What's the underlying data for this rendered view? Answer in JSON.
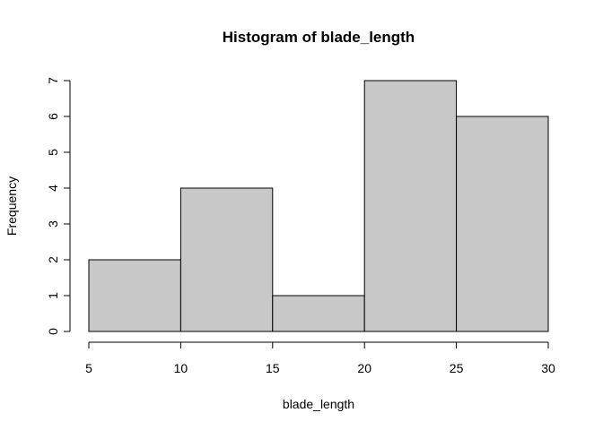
{
  "chart_data": {
    "type": "bar",
    "title": "Histogram of blade_length",
    "xlabel": "blade_length",
    "ylabel": "Frequency",
    "bins": [
      {
        "start": 5,
        "end": 10,
        "count": 2
      },
      {
        "start": 10,
        "end": 15,
        "count": 4
      },
      {
        "start": 15,
        "end": 20,
        "count": 1
      },
      {
        "start": 20,
        "end": 25,
        "count": 7
      },
      {
        "start": 25,
        "end": 30,
        "count": 6
      }
    ],
    "xlim": [
      5,
      30
    ],
    "ylim": [
      0,
      7
    ],
    "x_ticks": [
      "5",
      "10",
      "15",
      "20",
      "25",
      "30"
    ],
    "y_ticks": [
      "0",
      "1",
      "2",
      "3",
      "4",
      "5",
      "6",
      "7"
    ],
    "bar_color": "#c8c8c8",
    "grid": false
  }
}
